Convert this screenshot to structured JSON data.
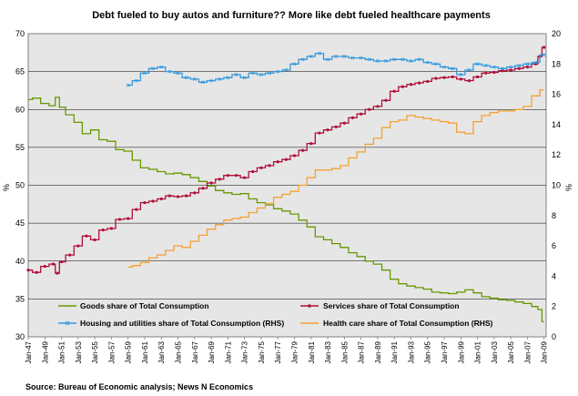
{
  "chart_data": {
    "type": "line",
    "title": "Debt fueled to buy autos and furniture?? More like debt fueled healthcare payments",
    "ylabel_left": "%",
    "ylabel_right": "%",
    "ylim_left": [
      30,
      70
    ],
    "ylim_right": [
      0,
      20
    ],
    "yticks_left": [
      "30",
      "35",
      "40",
      "45",
      "50",
      "55",
      "60",
      "65",
      "70"
    ],
    "yticks_right": [
      "0",
      "2",
      "4",
      "6",
      "8",
      "10",
      "12",
      "14",
      "16",
      "18",
      "20"
    ],
    "x_tick_labels": [
      "Jan-47",
      "Jan-49",
      "Jan-51",
      "Jan-53",
      "Jan-55",
      "Jan-57",
      "Jan-59",
      "Jan-61",
      "Jan-63",
      "Jan-65",
      "Jan-67",
      "Jan-69",
      "Jan-71",
      "Jan-73",
      "Jan-75",
      "Jan-77",
      "Jan-79",
      "Jan-81",
      "Jan-83",
      "Jan-85",
      "Jan-87",
      "Jan-89",
      "Jan-91",
      "Jan-93",
      "Jan-95",
      "Jan-97",
      "Jan-99",
      "Jan-01",
      "Jan-03",
      "Jan-05",
      "Jan-07",
      "Jan-09"
    ],
    "x_range": [
      1947,
      2009.25
    ],
    "grid": "horizontal",
    "legend_position": "bottom",
    "source": "Source: Bureau of Economic analysis; News N Economics",
    "series": [
      {
        "name": "Goods share of Total Consumption",
        "axis": "left",
        "color": "#669900",
        "marker": "none",
        "x": [
          1947,
          1948,
          1949,
          1950,
          1950.5,
          1951,
          1952,
          1953,
          1954,
          1955,
          1956,
          1957,
          1958,
          1959,
          1960,
          1961,
          1962,
          1963,
          1964,
          1965,
          1966,
          1967,
          1968,
          1969,
          1970,
          1971,
          1972,
          1973,
          1974,
          1975,
          1976,
          1977,
          1978,
          1979,
          1980,
          1981,
          1982,
          1983,
          1984,
          1985,
          1986,
          1987,
          1988,
          1989,
          1990,
          1991,
          1992,
          1993,
          1994,
          1995,
          1996,
          1997,
          1998,
          1999,
          2000,
          2001,
          2002,
          2003,
          2004,
          2005,
          2006,
          2007,
          2008,
          2008.5,
          2009
        ],
        "y": [
          61.3,
          61.5,
          60.8,
          60.5,
          61.6,
          60.3,
          59.3,
          58.3,
          56.8,
          57.3,
          56.0,
          55.8,
          54.7,
          54.5,
          53.3,
          52.3,
          52.1,
          51.8,
          51.5,
          51.6,
          51.4,
          51.0,
          50.5,
          49.9,
          49.3,
          49.0,
          48.8,
          48.9,
          48.2,
          47.7,
          47.4,
          46.9,
          46.6,
          46.2,
          45.4,
          44.5,
          43.2,
          42.8,
          42.3,
          41.8,
          41.1,
          40.6,
          40.0,
          39.6,
          38.8,
          37.6,
          37.0,
          36.7,
          36.5,
          36.3,
          35.9,
          35.8,
          35.7,
          35.9,
          36.2,
          35.8,
          35.3,
          35.1,
          34.9,
          34.8,
          34.6,
          34.4,
          34.0,
          33.6,
          32.0
        ]
      },
      {
        "name": "Services share of Total Consumption",
        "axis": "left",
        "color": "#b0103a",
        "marker": "dot",
        "x": [
          1947,
          1948,
          1949,
          1950,
          1950.5,
          1951,
          1952,
          1953,
          1954,
          1955,
          1956,
          1957,
          1958,
          1959,
          1960,
          1961,
          1962,
          1963,
          1964,
          1965,
          1966,
          1967,
          1968,
          1969,
          1970,
          1971,
          1972,
          1973,
          1974,
          1975,
          1976,
          1977,
          1978,
          1979,
          1980,
          1981,
          1982,
          1983,
          1984,
          1985,
          1986,
          1987,
          1988,
          1989,
          1990,
          1991,
          1992,
          1993,
          1994,
          1995,
          1996,
          1997,
          1998,
          1999,
          2000,
          2001,
          2002,
          2003,
          2004,
          2005,
          2006,
          2007,
          2008,
          2008.5,
          2009
        ],
        "y": [
          38.8,
          38.5,
          39.3,
          39.6,
          38.4,
          39.9,
          40.8,
          42.0,
          43.3,
          42.8,
          44.1,
          44.3,
          45.5,
          45.6,
          46.8,
          47.7,
          47.9,
          48.2,
          48.6,
          48.5,
          48.6,
          49.0,
          49.6,
          50.3,
          50.8,
          51.3,
          51.3,
          51.0,
          51.8,
          52.3,
          52.6,
          53.1,
          53.4,
          53.9,
          54.6,
          55.5,
          56.9,
          57.3,
          57.7,
          58.2,
          58.9,
          59.4,
          60.0,
          60.4,
          61.2,
          62.4,
          63.0,
          63.3,
          63.5,
          63.7,
          64.1,
          64.2,
          64.3,
          64.0,
          63.8,
          64.3,
          64.8,
          64.9,
          65.1,
          65.2,
          65.4,
          65.6,
          66.0,
          67.0,
          68.2
        ]
      },
      {
        "name": "Housing and utilities share of Total Consumption (RHS)",
        "axis": "right",
        "color": "#3399dd",
        "marker": "x",
        "x": [
          1959,
          1960,
          1961,
          1962,
          1963,
          1964,
          1965,
          1966,
          1967,
          1968,
          1969,
          1970,
          1971,
          1972,
          1973,
          1974,
          1975,
          1976,
          1977,
          1978,
          1979,
          1980,
          1981,
          1982,
          1983,
          1984,
          1985,
          1986,
          1987,
          1988,
          1989,
          1990,
          1991,
          1992,
          1993,
          1994,
          1995,
          1996,
          1997,
          1998,
          1999,
          2000,
          2001,
          2002,
          2003,
          2004,
          2005,
          2006,
          2007,
          2008,
          2009
        ],
        "y": [
          16.6,
          16.9,
          17.4,
          17.7,
          17.8,
          17.5,
          17.4,
          17.1,
          17.0,
          16.8,
          16.9,
          17.0,
          17.1,
          17.3,
          17.1,
          17.4,
          17.3,
          17.4,
          17.5,
          17.6,
          18.0,
          18.3,
          18.5,
          18.7,
          18.3,
          18.5,
          18.5,
          18.4,
          18.4,
          18.3,
          18.2,
          18.2,
          18.3,
          18.3,
          18.2,
          18.3,
          18.1,
          18.0,
          17.8,
          17.7,
          17.3,
          17.6,
          18.0,
          17.9,
          17.8,
          17.7,
          17.8,
          17.9,
          18.0,
          18.1,
          18.6
        ]
      },
      {
        "name": "Health care share of Total Consumption (RHS)",
        "axis": "right",
        "color": "#f5a030",
        "marker": "none",
        "x": [
          1959,
          1960,
          1961,
          1962,
          1963,
          1964,
          1965,
          1966,
          1967,
          1968,
          1969,
          1970,
          1971,
          1972,
          1973,
          1974,
          1975,
          1976,
          1977,
          1978,
          1979,
          1980,
          1981,
          1982,
          1983,
          1984,
          1985,
          1986,
          1987,
          1988,
          1989,
          1990,
          1991,
          1992,
          1993,
          1994,
          1995,
          1996,
          1997,
          1998,
          1999,
          2000,
          2001,
          2002,
          2003,
          2004,
          2005,
          2006,
          2007,
          2008,
          2009
        ],
        "y": [
          4.6,
          4.7,
          4.9,
          5.2,
          5.4,
          5.7,
          6.0,
          5.9,
          6.3,
          6.7,
          7.1,
          7.4,
          7.7,
          7.8,
          7.9,
          8.2,
          8.5,
          8.8,
          9.2,
          9.4,
          9.6,
          10.0,
          10.5,
          11.0,
          11.0,
          11.1,
          11.3,
          11.8,
          12.2,
          12.7,
          13.1,
          13.8,
          14.2,
          14.3,
          14.6,
          14.5,
          14.4,
          14.3,
          14.2,
          14.1,
          13.5,
          13.4,
          14.2,
          14.6,
          14.8,
          14.9,
          14.9,
          15.0,
          15.2,
          15.9,
          16.3
        ]
      }
    ]
  }
}
